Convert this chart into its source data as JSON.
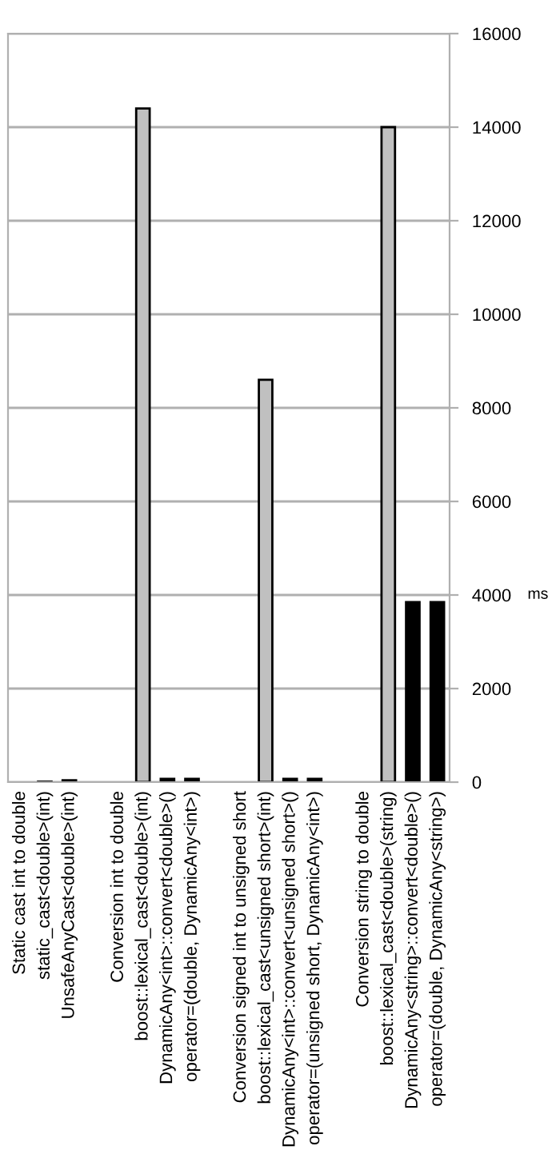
{
  "chart_data": {
    "type": "bar",
    "categories": [
      "Static cast int to double",
      "static_cast<double>(int)",
      "UnsafeAnyCast<double>(int)",
      null,
      "Conversion int to double",
      "boost::lexical_cast<double>(int)",
      "DynamicAny<int>::convert<double>()",
      "operator=(double, DynamicAny<int>)",
      null,
      "Conversion signed int to unsigned short",
      "boost::lexical_cast<unsigned short>(int)",
      "DynamicAny<int>::convert<unsigned short>()",
      "operator=(unsigned short, DynamicAny<int>)",
      null,
      "Conversion string to double",
      "boost::lexical_cast<double>(string)",
      "DynamicAny<string>::convert<double>()",
      "operator=(double, DynamicAny<string>)"
    ],
    "values": [
      null,
      10,
      40,
      null,
      null,
      14400,
      70,
      70,
      null,
      null,
      8600,
      70,
      70,
      null,
      null,
      14000,
      3850,
      3850
    ],
    "colors": [
      null,
      "#000000",
      "#000000",
      null,
      null,
      "#c0c0c0",
      "#000000",
      "#000000",
      null,
      null,
      "#c0c0c0",
      "#000000",
      "#000000",
      null,
      null,
      "#c0c0c0",
      "#000000",
      "#000000"
    ],
    "ylabel": "ms",
    "ylim": [
      0,
      16000
    ],
    "yticks": [
      0,
      2000,
      4000,
      6000,
      8000,
      10000,
      12000,
      14000,
      16000
    ],
    "grid": "y"
  }
}
